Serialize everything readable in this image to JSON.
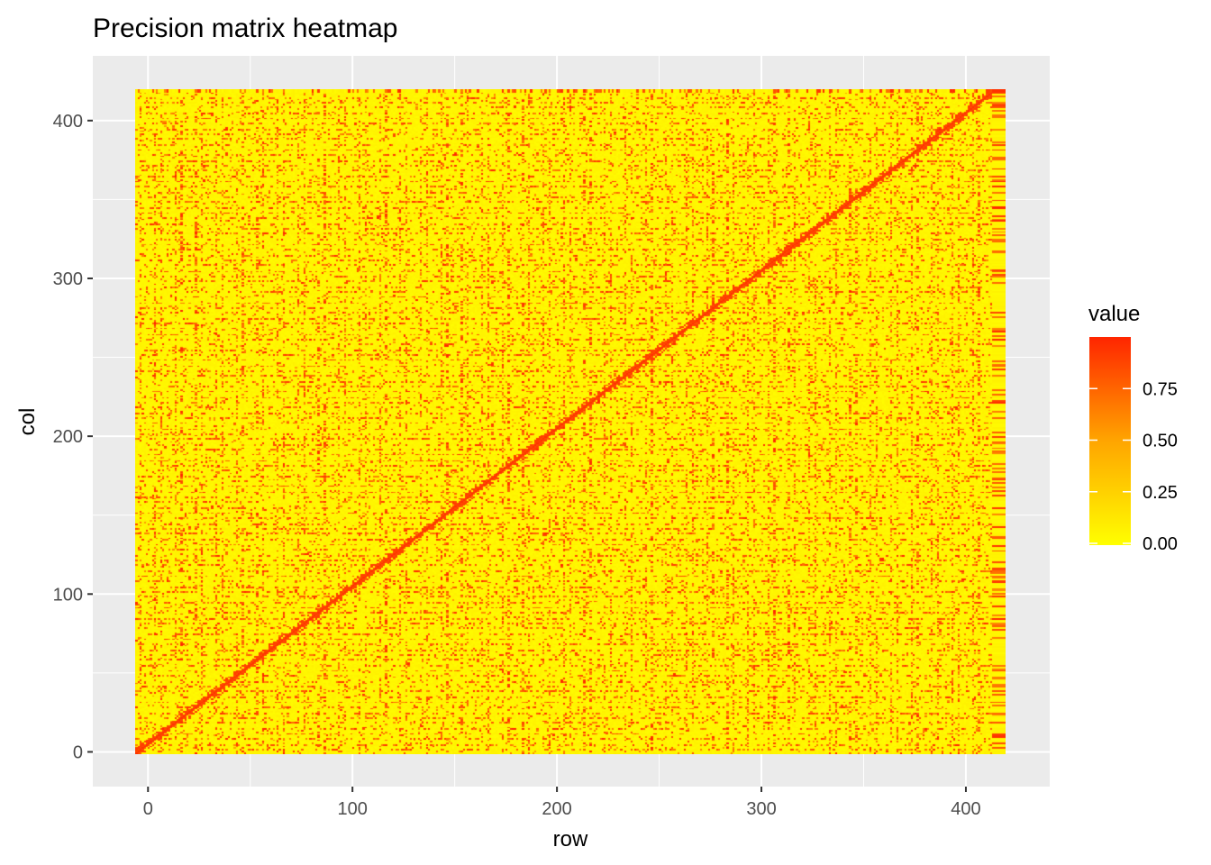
{
  "chart_data": {
    "type": "heatmap",
    "title": "Precision matrix heatmap",
    "xlabel": "row",
    "ylabel": "col",
    "xlim": [
      -27,
      441
    ],
    "ylim": [
      -22,
      441
    ],
    "matrix_size": 420,
    "x_ticks": [
      0,
      100,
      200,
      300,
      400
    ],
    "x_tick_labels": [
      "0",
      "100",
      "200",
      "300",
      "400"
    ],
    "y_ticks": [
      0,
      100,
      200,
      300,
      400
    ],
    "y_tick_labels": [
      "0",
      "100",
      "200",
      "300",
      "400"
    ],
    "grid": true,
    "background_color": "#EBEBEB",
    "gridline_color": "#FFFFFF",
    "color_scale": {
      "low": "#FFFF00",
      "mid": "#FFA500",
      "high": "#FF2500"
    },
    "value_range": [
      0,
      1
    ],
    "dominant_value": 0.02,
    "diagonal_value": 0.95,
    "pattern_period": 10,
    "legend": {
      "title": "value",
      "position": "right",
      "breaks": [
        0.0,
        0.25,
        0.5,
        0.75
      ],
      "labels": [
        "0.00",
        "0.25",
        "0.50",
        "0.75"
      ]
    }
  }
}
